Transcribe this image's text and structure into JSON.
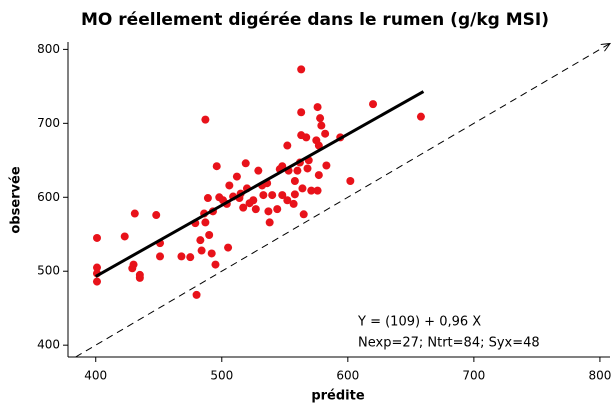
{
  "chart_data": {
    "type": "scatter",
    "title": "MO réellement digérée dans le rumen (g/kg MSI)",
    "x_label": "prédite",
    "y_label": "observée",
    "annotations": [
      "Y = (109) + 0,96 X",
      "Nexp=27; Ntrt=84; Syx=48"
    ],
    "color": "#e8121a",
    "x": [
      401,
      401,
      401,
      401,
      423,
      430,
      429,
      431,
      435,
      435,
      448,
      451,
      451,
      468,
      475,
      479,
      480,
      483,
      484,
      487,
      487,
      486,
      489,
      490,
      492,
      493,
      495,
      496,
      498,
      501,
      504,
      505,
      506,
      509,
      512,
      514,
      515,
      517,
      519,
      520,
      522,
      525,
      529,
      532,
      536,
      538,
      540,
      544,
      546,
      548,
      548,
      552,
      553,
      558,
      558,
      560,
      562,
      563,
      563,
      563,
      564,
      565,
      567,
      568,
      569,
      571,
      575,
      576,
      577,
      578,
      579,
      582,
      583,
      576,
      577,
      594,
      602,
      620,
      658,
      557,
      552,
      537,
      527,
      533
    ],
    "values": [
      545,
      505,
      497,
      486,
      547,
      509,
      504,
      578,
      495,
      491,
      576,
      538,
      520,
      520,
      519,
      565,
      468,
      542,
      528,
      566,
      705,
      578,
      599,
      549,
      524,
      581,
      509,
      642,
      600,
      596,
      591,
      532,
      616,
      601,
      628,
      599,
      605,
      586,
      646,
      612,
      592,
      596,
      636,
      616,
      619,
      566,
      603,
      584,
      638,
      642,
      603,
      670,
      636,
      622,
      604,
      636,
      647,
      684,
      773,
      715,
      612,
      577,
      681,
      639,
      650,
      609,
      677,
      722,
      670,
      707,
      697,
      686,
      643,
      609,
      630,
      681,
      622,
      726,
      709,
      591,
      596,
      581,
      584,
      603
    ],
    "fit": {
      "x": [
        400,
        660
      ],
      "values": [
        493,
        743
      ]
    },
    "xlim": [
      378,
      808
    ],
    "ylim": [
      384,
      810
    ],
    "xticks": [
      400,
      500,
      600,
      700,
      800
    ],
    "yticks": [
      400,
      500,
      600,
      700,
      800
    ]
  }
}
